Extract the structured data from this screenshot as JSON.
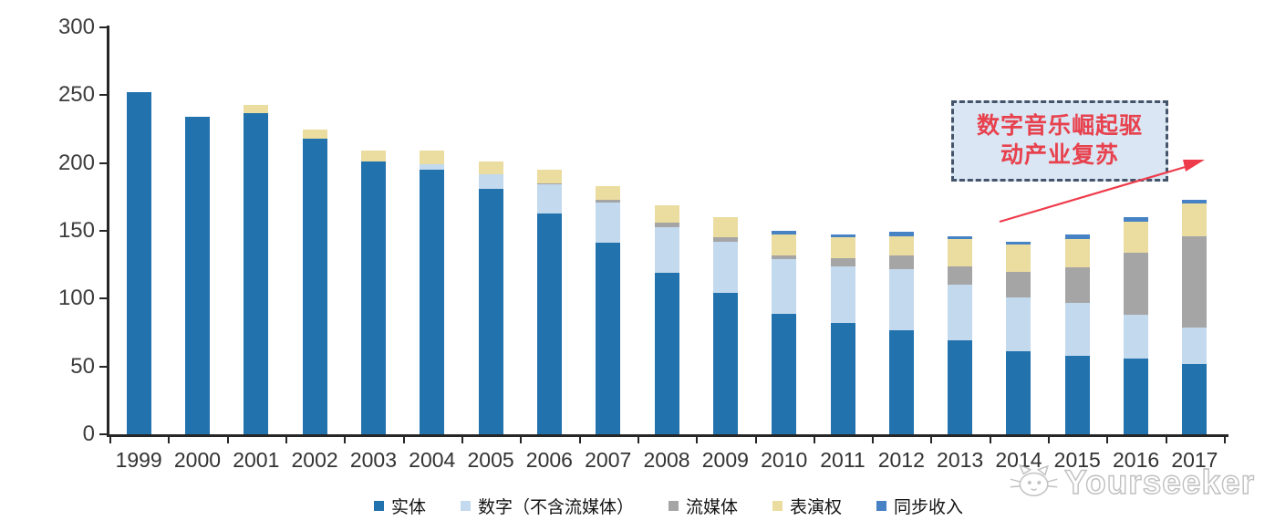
{
  "chart_data": {
    "type": "bar",
    "stacked": true,
    "title": "",
    "xlabel": "",
    "ylabel": "",
    "ylim": [
      0,
      300
    ],
    "yticks": [
      0,
      50,
      100,
      150,
      200,
      250,
      300
    ],
    "grid": false,
    "legend_position": "bottom",
    "categories": [
      "1999",
      "2000",
      "2001",
      "2002",
      "2003",
      "2004",
      "2005",
      "2006",
      "2007",
      "2008",
      "2009",
      "2010",
      "2011",
      "2012",
      "2013",
      "2014",
      "2015",
      "2016",
      "2017"
    ],
    "series": [
      {
        "name": "实体",
        "color": "#2272AD",
        "values": [
          252,
          234,
          237,
          218,
          201,
          195,
          181,
          163,
          141,
          119,
          104,
          89,
          82,
          77,
          69,
          61,
          58,
          56,
          52
        ]
      },
      {
        "name": "数字（不含流媒体）",
        "color": "#C3D9EE",
        "values": [
          0,
          0,
          0,
          0,
          0,
          4,
          11,
          21,
          30,
          34,
          38,
          40,
          42,
          45,
          41,
          40,
          39,
          32,
          27
        ]
      },
      {
        "name": "流媒体",
        "color": "#A5A5A5",
        "values": [
          0,
          0,
          0,
          0,
          0,
          0,
          0,
          1,
          2,
          3,
          3,
          3,
          6,
          10,
          14,
          19,
          26,
          46,
          67
        ]
      },
      {
        "name": "表演权",
        "color": "#EBDCA0",
        "values": [
          0,
          0,
          6,
          7,
          8,
          10,
          9,
          10,
          10,
          13,
          15,
          15,
          15,
          14,
          20,
          20,
          21,
          23,
          24
        ]
      },
      {
        "name": "同步收入",
        "color": "#4682C4",
        "values": [
          0,
          0,
          0,
          0,
          0,
          0,
          0,
          0,
          0,
          0,
          0,
          3,
          2,
          3,
          2,
          2,
          3,
          3,
          3
        ]
      }
    ]
  },
  "annotation": {
    "line1": "数字音乐崛起驱",
    "line2": "动产业复苏",
    "text_color": "#E8414E",
    "box_fill": "#DAE6F3",
    "border_color": "#44546A",
    "arrow_color": "#EE3B4B"
  },
  "watermark": {
    "text": "Yourseeker",
    "logo": "cat-face-icon"
  }
}
